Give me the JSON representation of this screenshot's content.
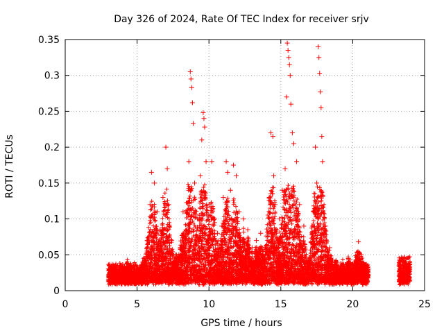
{
  "chart_data": {
    "type": "scatter",
    "title": "Day 326 of 2024, Rate Of TEC Index for receiver srjv",
    "xlabel": "GPS time / hours",
    "ylabel": "ROTI / TECUs",
    "xlim": [
      0,
      25
    ],
    "ylim": [
      0,
      0.35
    ],
    "x_ticks": [
      "0",
      "5",
      "10",
      "15",
      "20",
      "25"
    ],
    "y_ticks": [
      "0",
      "0.05",
      "0.1",
      "0.15",
      "0.2",
      "0.25",
      "0.3",
      "0.35"
    ],
    "grid": true,
    "legend": "none",
    "marker": "plus",
    "series_color": "#ff0000",
    "series": [
      {
        "values": [
          [
            3.2,
            0.018
          ],
          [
            3.5,
            0.022
          ],
          [
            3.8,
            0.015
          ],
          [
            4.1,
            0.025
          ],
          [
            4.3,
            0.038
          ],
          [
            4.5,
            0.02
          ],
          [
            4.8,
            0.012
          ],
          [
            5.1,
            0.02
          ],
          [
            5.3,
            0.03
          ],
          [
            5.5,
            0.045
          ],
          [
            5.7,
            0.07
          ],
          [
            5.9,
            0.12
          ],
          [
            6.0,
            0.165
          ],
          [
            6.2,
            0.15
          ],
          [
            6.4,
            0.11
          ],
          [
            6.6,
            0.085
          ],
          [
            6.8,
            0.13
          ],
          [
            7.0,
            0.2
          ],
          [
            7.1,
            0.17
          ],
          [
            7.2,
            0.12
          ],
          [
            7.4,
            0.07
          ],
          [
            7.7,
            0.05
          ],
          [
            8.0,
            0.06
          ],
          [
            8.2,
            0.11
          ],
          [
            8.4,
            0.07
          ],
          [
            8.6,
            0.18
          ],
          [
            8.7,
            0.305
          ],
          [
            8.75,
            0.295
          ],
          [
            8.8,
            0.283
          ],
          [
            8.85,
            0.262
          ],
          [
            8.9,
            0.233
          ],
          [
            9.0,
            0.15
          ],
          [
            9.2,
            0.1
          ],
          [
            9.4,
            0.16
          ],
          [
            9.5,
            0.21
          ],
          [
            9.6,
            0.248
          ],
          [
            9.65,
            0.24
          ],
          [
            9.7,
            0.228
          ],
          [
            9.8,
            0.18
          ],
          [
            10.0,
            0.12
          ],
          [
            10.2,
            0.18
          ],
          [
            10.4,
            0.1
          ],
          [
            10.6,
            0.08
          ],
          [
            10.9,
            0.09
          ],
          [
            11.0,
            0.13
          ],
          [
            11.2,
            0.18
          ],
          [
            11.3,
            0.165
          ],
          [
            11.5,
            0.14
          ],
          [
            11.7,
            0.175
          ],
          [
            11.9,
            0.16
          ],
          [
            12.1,
            0.11
          ],
          [
            12.4,
            0.1
          ],
          [
            12.7,
            0.085
          ],
          [
            13.0,
            0.06
          ],
          [
            13.3,
            0.07
          ],
          [
            13.6,
            0.08
          ],
          [
            13.9,
            0.06
          ],
          [
            14.2,
            0.13
          ],
          [
            14.3,
            0.22
          ],
          [
            14.45,
            0.215
          ],
          [
            14.5,
            0.16
          ],
          [
            14.6,
            0.12
          ],
          [
            14.9,
            0.1
          ],
          [
            15.1,
            0.14
          ],
          [
            15.3,
            0.17
          ],
          [
            15.4,
            0.27
          ],
          [
            15.45,
            0.345
          ],
          [
            15.5,
            0.335
          ],
          [
            15.55,
            0.325
          ],
          [
            15.6,
            0.315
          ],
          [
            15.65,
            0.3
          ],
          [
            15.7,
            0.26
          ],
          [
            15.8,
            0.22
          ],
          [
            15.9,
            0.205
          ],
          [
            16.1,
            0.18
          ],
          [
            16.3,
            0.12
          ],
          [
            16.6,
            0.09
          ],
          [
            16.9,
            0.04
          ],
          [
            17.2,
            0.08
          ],
          [
            17.4,
            0.2
          ],
          [
            17.5,
            0.15
          ],
          [
            17.6,
            0.34
          ],
          [
            17.65,
            0.325
          ],
          [
            17.7,
            0.303
          ],
          [
            17.75,
            0.277
          ],
          [
            17.8,
            0.255
          ],
          [
            17.85,
            0.215
          ],
          [
            17.9,
            0.18
          ],
          [
            18.1,
            0.09
          ],
          [
            18.4,
            0.06
          ],
          [
            18.8,
            0.04
          ],
          [
            19.3,
            0.035
          ],
          [
            19.7,
            0.045
          ],
          [
            20.2,
            0.04
          ],
          [
            20.4,
            0.068
          ],
          [
            20.6,
            0.05
          ],
          [
            20.9,
            0.03
          ],
          [
            21.0,
            0.02
          ],
          [
            23.3,
            0.02
          ],
          [
            23.5,
            0.045
          ],
          [
            23.7,
            0.04
          ],
          [
            23.9,
            0.015
          ]
        ]
      }
    ]
  }
}
